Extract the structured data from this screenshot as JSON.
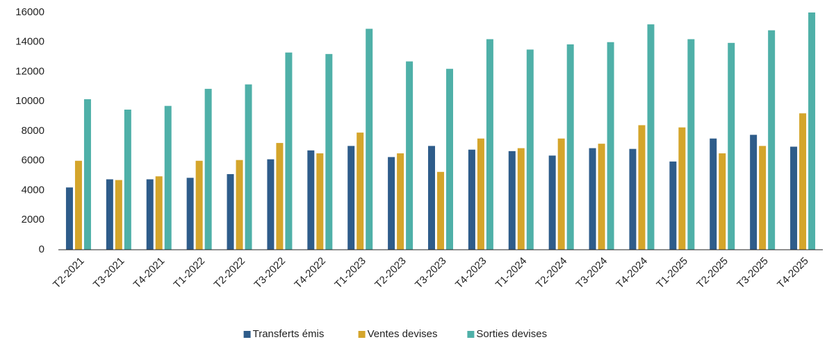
{
  "chart_data": {
    "type": "bar",
    "categories": [
      "T2-2021",
      "T3-2021",
      "T4-2021",
      "T1-2022",
      "T2-2022",
      "T3-2022",
      "T4-2022",
      "T1-2023",
      "T2-2023",
      "T3-2023",
      "T4-2023",
      "T1-2024",
      "T2-2024",
      "T3-2024",
      "T4-2024",
      "T1-2025",
      "T2-2025",
      "T3-2025",
      "T4-2025"
    ],
    "series": [
      {
        "name": "Transferts émis",
        "color": "#2e5c8a",
        "values": [
          4200,
          4750,
          4750,
          4850,
          5100,
          6100,
          6700,
          7000,
          6250,
          7000,
          6750,
          6650,
          6350,
          6850,
          6800,
          5950,
          7500,
          7750,
          6950
        ]
      },
      {
        "name": "Ventes devises",
        "color": "#d4a52b",
        "values": [
          6000,
          4700,
          4950,
          6000,
          6050,
          7200,
          6500,
          7900,
          6500,
          5250,
          7500,
          6850,
          7500,
          7150,
          8400,
          8250,
          6500,
          7000,
          9200
        ]
      },
      {
        "name": "Sorties devises",
        "color": "#4fb0a8",
        "values": [
          10150,
          9450,
          9700,
          10850,
          11150,
          13300,
          13200,
          14900,
          12700,
          12200,
          14200,
          13500,
          13850,
          14000,
          15200,
          14200,
          13950,
          14800,
          16000
        ]
      }
    ],
    "ylim": [
      0,
      16000
    ],
    "yticks": [
      0,
      2000,
      4000,
      6000,
      8000,
      10000,
      12000,
      14000,
      16000
    ],
    "grid": false,
    "legend": "bottom"
  }
}
